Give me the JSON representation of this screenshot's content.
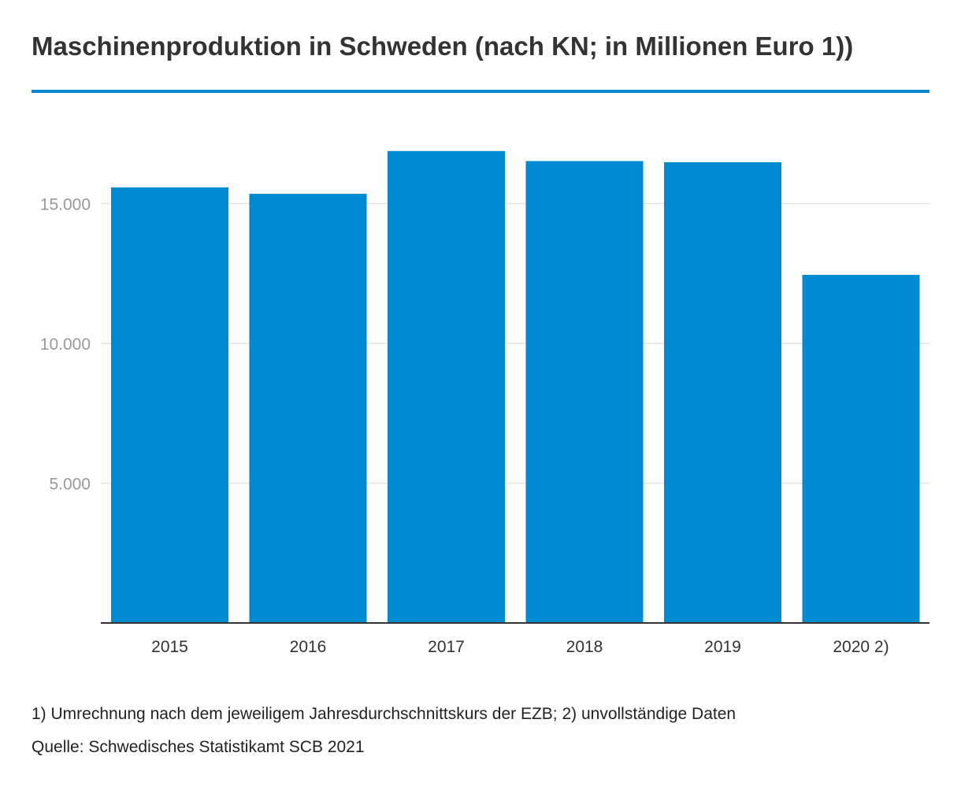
{
  "colors": {
    "bar": "#008AD2",
    "accent": "#0A87CF",
    "grid": "#e3e3e3",
    "axis": "#333333",
    "ytick": "#999999",
    "xtick": "#333333"
  },
  "chart_data": {
    "type": "bar",
    "title": "Maschinenproduktion in Schweden (nach KN; in Millionen Euro 1))",
    "categories": [
      "2015",
      "2016",
      "2017",
      "2018",
      "2019",
      "2020 2)"
    ],
    "values": [
      15580,
      15350,
      16880,
      16520,
      16480,
      12450
    ],
    "yticks": [
      5000,
      10000,
      15000
    ],
    "ytick_labels": [
      "5.000",
      "10.000",
      "15.000"
    ],
    "ylim": [
      0,
      17500
    ],
    "xlabel": "",
    "ylabel": "",
    "grid": true
  },
  "footnotes": {
    "note": "1) Umrechnung nach dem jeweiligem Jahresdurchschnittskurs der EZB; 2) unvollständige Daten",
    "source": "Quelle: Schwedisches Statistikamt SCB 2021"
  }
}
